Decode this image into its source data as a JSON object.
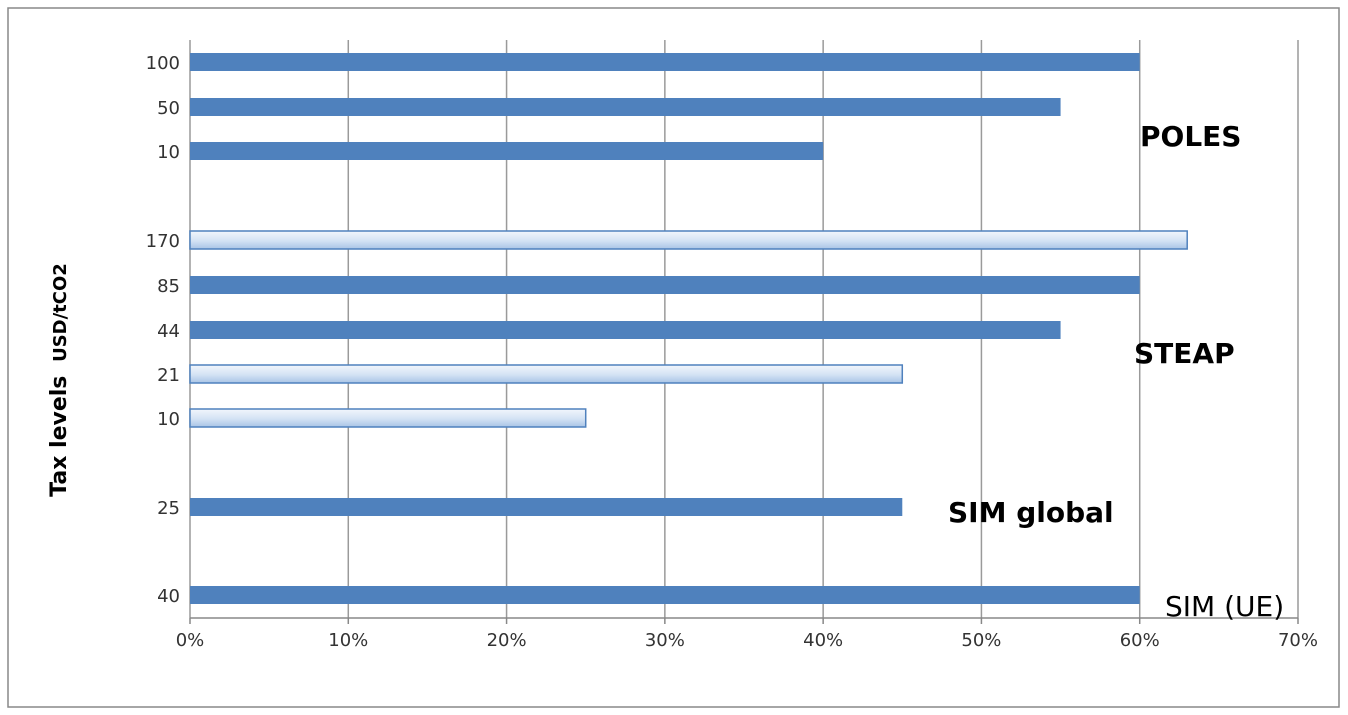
{
  "chart_data": {
    "type": "bar",
    "orientation": "horizontal",
    "ylabel_main": "Tax levels",
    "ylabel_unit": "USD/tCO2",
    "xlim": [
      0,
      0.7
    ],
    "x_ticks": [
      {
        "value": 0.0,
        "label": "0%"
      },
      {
        "value": 0.1,
        "label": "10%"
      },
      {
        "value": 0.2,
        "label": "20%"
      },
      {
        "value": 0.3,
        "label": "30%"
      },
      {
        "value": 0.4,
        "label": "40%"
      },
      {
        "value": 0.5,
        "label": "50%"
      },
      {
        "value": 0.6,
        "label": "60%"
      },
      {
        "value": 0.7,
        "label": "70%"
      }
    ],
    "grid": "vertical",
    "colors": {
      "solid": "#4f81bd",
      "light": "#c9daf0",
      "light_border": "#4f81bd",
      "grid": "#9a9a9a"
    },
    "groups": [
      {
        "label": "POLES",
        "bars": [
          {
            "category": "100",
            "value": 0.6,
            "style": "solid"
          },
          {
            "category": "50",
            "value": 0.55,
            "style": "solid"
          },
          {
            "category": "10",
            "value": 0.4,
            "style": "solid"
          }
        ]
      },
      {
        "label": "STEAP",
        "bars": [
          {
            "category": "170",
            "value": 0.63,
            "style": "light"
          },
          {
            "category": "85",
            "value": 0.6,
            "style": "solid"
          },
          {
            "category": "44",
            "value": 0.55,
            "style": "solid"
          },
          {
            "category": "21",
            "value": 0.45,
            "style": "light"
          },
          {
            "category": "10",
            "value": 0.25,
            "style": "light"
          }
        ]
      },
      {
        "label": "SIM global",
        "bars": [
          {
            "category": "25",
            "value": 0.45,
            "style": "solid"
          }
        ]
      },
      {
        "label": "SIM (UE)",
        "bars": [
          {
            "category": "40",
            "value": 0.6,
            "style": "solid"
          }
        ]
      }
    ]
  }
}
